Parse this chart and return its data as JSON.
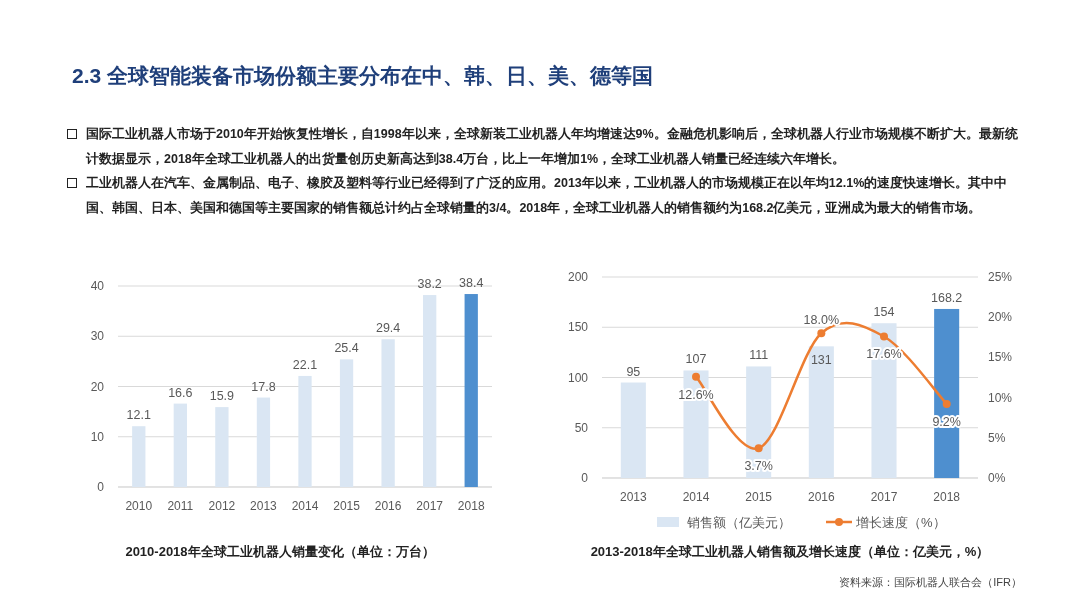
{
  "chart_data": [
    {
      "type": "other",
      "title": "2.3 全球智能装备市场份额主要分布在中、韩、日、美、德等国",
      "annotations": [
        "国际工业机器人市场于2010年开始恢复性增长，自1998年以来，全球新装工业机器人年均增速达9%。金融危机影响后，全球机器人行业市场规模不断扩大。最新统计数据显示，2018年全球工业机器人的出货量创历史新高达到38.4万台，比上一年增加1%，全球工业机器人销量已经连续六年增长。",
        "工业机器人在汽车、金属制品、电子、橡胶及塑料等行业已经得到了广泛的应用。2013年以来，工业机器人的市场规模正在以年均12.1%的速度快速增长。其中中国、韩国、日本、美国和德国等主要国家的销售额总计约占全球销量的3/4。2018年，全球工业机器人的销售额约为168.2亿美元，亚洲成为最大的销售市场。"
      ]
    },
    {
      "type": "bar",
      "title": "2010-2018年全球工业机器人销量变化（单位：万台）",
      "categories": [
        "2010",
        "2011",
        "2012",
        "2013",
        "2014",
        "2015",
        "2016",
        "2017",
        "2018"
      ],
      "values": [
        12.1,
        16.6,
        15.9,
        17.8,
        22.1,
        25.4,
        29.4,
        38.2,
        38.4
      ],
      "colors": [
        "#dae6f3",
        "#dae6f3",
        "#dae6f3",
        "#dae6f3",
        "#dae6f3",
        "#dae6f3",
        "#dae6f3",
        "#dae6f3",
        "#4e8fcf"
      ],
      "ylim": [
        0,
        40
      ],
      "yticks": [
        0,
        10,
        20,
        30,
        40
      ],
      "grid": "y",
      "data_labels": true
    },
    {
      "type": "bar",
      "title": "2013-2018年全球工业机器人销售额及增长速度（单位：亿美元，%）",
      "categories": [
        "2013",
        "2014",
        "2015",
        "2016",
        "2017",
        "2018"
      ],
      "series": [
        {
          "name": "销售额（亿美元）",
          "type": "bar",
          "color": "#dae6f3",
          "colors": [
            "#dae6f3",
            "#dae6f3",
            "#dae6f3",
            "#dae6f3",
            "#dae6f3",
            "#4e8fcf"
          ],
          "values": [
            95,
            107,
            111,
            131,
            154,
            168.2
          ],
          "value_labels": [
            "95",
            "107",
            "111",
            "131",
            "154",
            "168.2"
          ]
        },
        {
          "name": "增长速度（%）",
          "type": "line",
          "axis": "y2",
          "color": "#ed7d31",
          "marker": "circle",
          "values": [
            null,
            12.6,
            3.7,
            18.0,
            17.6,
            9.2
          ],
          "value_labels": [
            null,
            "12.6%",
            "3.7%",
            "18.0%",
            "17.6%",
            "9.2%"
          ]
        }
      ],
      "ylim": [
        0,
        200
      ],
      "yticks": [
        0,
        50,
        100,
        150,
        200
      ],
      "y2lim": [
        0,
        25
      ],
      "y2ticks": [
        {
          "value": 0,
          "label": "0%"
        },
        {
          "value": 5,
          "label": "5%"
        },
        {
          "value": 10,
          "label": "10%"
        },
        {
          "value": 15,
          "label": "15%"
        },
        {
          "value": 20,
          "label": "20%"
        },
        {
          "value": 25,
          "label": "25%"
        }
      ],
      "grid": "y",
      "legend": "bottom",
      "annotations": [
        "资料来源：国际机器人联合会（IFR）"
      ]
    }
  ]
}
